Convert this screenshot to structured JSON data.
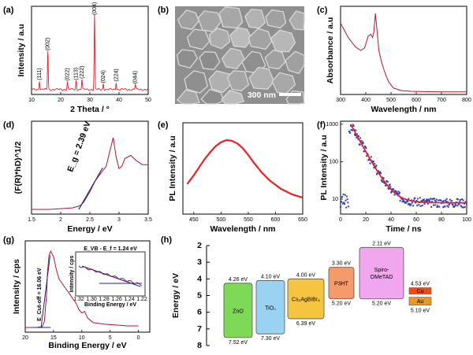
{
  "panels": [
    {
      "id": "a",
      "label": "(a)"
    },
    {
      "id": "b",
      "label": "(b)"
    },
    {
      "id": "c",
      "label": "(c)"
    },
    {
      "id": "d",
      "label": "(d)"
    },
    {
      "id": "e",
      "label": "(e)"
    },
    {
      "id": "f",
      "label": "(f)"
    },
    {
      "id": "g",
      "label": "(g)"
    },
    {
      "id": "h",
      "label": "(h)"
    }
  ],
  "colors": {
    "red": "#e8202a",
    "blue": "#2b3fbf",
    "darkred": "#b0182a",
    "navy": "#1a2a8a"
  },
  "sem": {
    "scale_text": "300 nm"
  },
  "chart_data": [
    {
      "panel": "a",
      "type": "line",
      "xlabel": "2 Theta / °",
      "ylabel": "Intensity / a.u",
      "xlim": [
        10,
        50
      ],
      "xticks": [
        10,
        20,
        30,
        40,
        50
      ],
      "peaks": [
        {
          "x": 12.7,
          "y": 0.12,
          "label": "(111)"
        },
        {
          "x": 15.6,
          "y": 0.52,
          "label": "(002)"
        },
        {
          "x": 22.3,
          "y": 0.11,
          "label": "(022)"
        },
        {
          "x": 25.3,
          "y": 0.12,
          "label": "(113)"
        },
        {
          "x": 27.3,
          "y": 0.14,
          "label": "(222)"
        },
        {
          "x": 31.6,
          "y": 1.0,
          "label": "(004)"
        },
        {
          "x": 34.6,
          "y": 0.08,
          "label": "(024)"
        },
        {
          "x": 39.0,
          "y": 0.1,
          "label": "(224)"
        },
        {
          "x": 45.6,
          "y": 0.07,
          "label": "(044)"
        }
      ]
    },
    {
      "panel": "c",
      "type": "line",
      "xlabel": "Wavelength / nm",
      "ylabel": "Absorbance / a.u",
      "xlim": [
        300,
        800
      ],
      "xticks": [
        300,
        400,
        500,
        600,
        700,
        800
      ],
      "x": [
        300,
        330,
        360,
        380,
        395,
        410,
        420,
        427,
        432,
        438,
        445,
        452,
        462,
        475,
        490,
        510,
        540,
        580,
        650,
        700,
        800
      ],
      "y": [
        0.86,
        0.68,
        0.56,
        0.52,
        0.55,
        0.7,
        0.72,
        0.68,
        0.75,
        0.98,
        0.75,
        0.52,
        0.38,
        0.25,
        0.13,
        0.05,
        0.02,
        0.01,
        0.005,
        0.003,
        0.002
      ]
    },
    {
      "panel": "d",
      "type": "line",
      "xlabel": "Energy / eV",
      "ylabel": "(F(R)*hD)^1/2",
      "xlim": [
        1.5,
        3.5
      ],
      "xticks": [
        1.5,
        2.0,
        2.5,
        3.0,
        3.5
      ],
      "annotation": "E_g = 2.39 eV",
      "fit_intercept_eV": 2.39,
      "x": [
        1.5,
        1.8,
        2.0,
        2.2,
        2.3,
        2.35,
        2.4,
        2.5,
        2.6,
        2.7,
        2.78,
        2.85,
        2.9,
        2.95,
        3.0,
        3.05,
        3.1,
        3.2,
        3.3,
        3.4,
        3.5
      ],
      "y": [
        0.02,
        0.02,
        0.03,
        0.04,
        0.06,
        0.08,
        0.12,
        0.25,
        0.4,
        0.5,
        0.58,
        0.8,
        0.95,
        0.7,
        0.55,
        0.58,
        0.68,
        0.72,
        0.65,
        0.6,
        0.6
      ]
    },
    {
      "panel": "e",
      "type": "line",
      "xlabel": "Wavelength / nm",
      "ylabel": "PL Intensity / a.u",
      "xlim": [
        430,
        650
      ],
      "xticks": [
        450,
        500,
        550,
        600,
        650
      ],
      "x": [
        438,
        450,
        460,
        470,
        480,
        490,
        500,
        510,
        520,
        530,
        540,
        550,
        560,
        575,
        590,
        610,
        630,
        650
      ],
      "y": [
        0.35,
        0.48,
        0.6,
        0.72,
        0.82,
        0.91,
        0.97,
        1.0,
        0.99,
        0.95,
        0.88,
        0.78,
        0.67,
        0.52,
        0.4,
        0.28,
        0.2,
        0.15
      ]
    },
    {
      "panel": "f",
      "type": "scatter",
      "xlabel": "Time / ns",
      "ylabel": "PL Intensity / a.u",
      "xlim": [
        0,
        100
      ],
      "xticks": [
        0,
        20,
        40,
        60,
        80,
        100
      ],
      "yscale": "log",
      "yticks": [
        10,
        100,
        1000
      ],
      "peak_time": 8,
      "peak_value": 1000,
      "baseline": 8,
      "decay_ns": 7
    },
    {
      "panel": "g",
      "type": "line",
      "xlabel": "Binding Energy / eV",
      "ylabel": "Intensity / cps",
      "xlim": [
        20,
        -2
      ],
      "xticks": [
        20,
        15,
        10,
        5,
        0
      ],
      "annotation": "E_Cut-off = 16.06 eV",
      "x": [
        20,
        18,
        17,
        16.6,
        16.2,
        16.06,
        15.8,
        15.5,
        15.0,
        14.5,
        14,
        13,
        12,
        11,
        10.5,
        10,
        9.5,
        9,
        8,
        6,
        4,
        2,
        0
      ],
      "y": [
        0.0,
        0.0,
        0.01,
        0.08,
        0.45,
        0.7,
        0.9,
        0.95,
        0.88,
        0.72,
        0.6,
        0.5,
        0.4,
        0.3,
        0.22,
        0.18,
        0.2,
        0.12,
        0.06,
        0.04,
        0.03,
        0.02,
        0.02
      ],
      "inset": {
        "annotation": "E_VB - E_f = 1.24 eV",
        "xlabel": "Binding Energy / eV",
        "ylabel": "Intensity / cps",
        "xticks": [
          "1.32",
          "1.30",
          "1.28",
          "1.26",
          "1.24",
          "1.22"
        ]
      }
    },
    {
      "panel": "h",
      "type": "energy_diagram",
      "ylabel": "Energy / eV",
      "ylim": [
        2,
        8
      ],
      "yticks": [
        2,
        3,
        4,
        5,
        6,
        7,
        8
      ],
      "layers": [
        {
          "name": "ZnO",
          "top": 4.26,
          "bottom": 7.52,
          "top_label": "4.26 eV",
          "bottom_label": "7.52 eV",
          "color": "#7ed957"
        },
        {
          "name": "TiO₂",
          "top": 4.1,
          "bottom": 7.3,
          "top_label": "4.10 eV",
          "bottom_label": "7.30 eV",
          "color": "#9ad3f2"
        },
        {
          "name": "Cs₂AgBiBr₆",
          "top": 4.0,
          "bottom": 6.39,
          "top_label": "4.00 eV",
          "bottom_label": "6.39 eV",
          "color": "#f5c542"
        },
        {
          "name": "P3HT",
          "top": 3.3,
          "bottom": 5.2,
          "top_label": "3.30 eV",
          "bottom_label": "5.20 eV",
          "color": "#f49a6b"
        },
        {
          "name": "Spiro-OMeTAD",
          "top": 2.11,
          "bottom": 5.2,
          "top_label": "2.11 eV",
          "bottom_label": "5.20 eV",
          "color": "#f0a7ee"
        },
        {
          "name": "Cu",
          "level": 4.53,
          "label": "4.53 eV",
          "color": "#ef4a1a"
        },
        {
          "name": "Au",
          "level": 5.1,
          "label": "5.10 eV",
          "color": "#e49a28"
        }
      ]
    }
  ]
}
